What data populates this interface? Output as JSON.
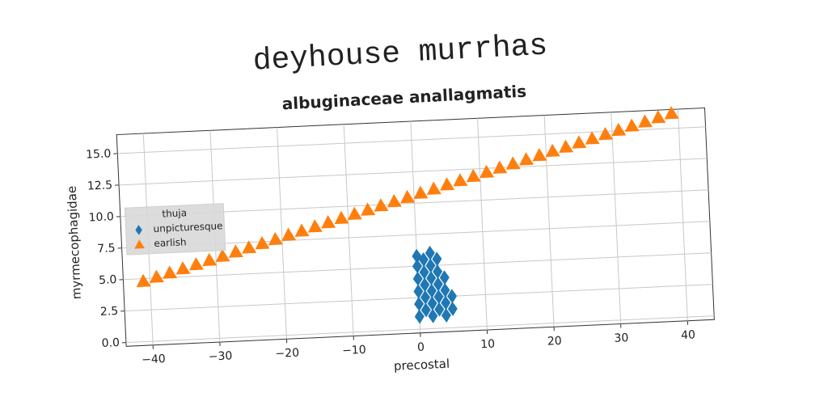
{
  "chart_data": {
    "type": "scatter",
    "title": "deyhouse murrhas",
    "subtitle": "albuginaceae anallagmatis",
    "x_label": "precostal",
    "y_label": "myrmecophagidae",
    "legend_title": "thuja",
    "legend": "center left",
    "grid": true,
    "xlim": [
      -44,
      44
    ],
    "ylim": [
      -0.3,
      16.5
    ],
    "xticks": [
      {
        "value": -40,
        "label": "−40"
      },
      {
        "value": -30,
        "label": "−30"
      },
      {
        "value": -20,
        "label": "−20"
      },
      {
        "value": -10,
        "label": "−10"
      },
      0,
      10,
      20,
      30,
      40
    ],
    "yticks": [
      {
        "value": 0,
        "label": "0.0"
      },
      2.5,
      {
        "value": 5,
        "label": "5.0"
      },
      7.5,
      {
        "value": 10,
        "label": "10.0"
      },
      12.5,
      {
        "value": 15,
        "label": "15.0"
      }
    ],
    "series": [
      {
        "name": "unpicturesque",
        "color": "#1f77b4",
        "marker": "diamond",
        "x": [
          0,
          0,
          0,
          0,
          0,
          0,
          1,
          1,
          1,
          1,
          1,
          2,
          2,
          2,
          2,
          2,
          2,
          3,
          3,
          3,
          3,
          3,
          4,
          4,
          4,
          4,
          5,
          5
        ],
        "values": [
          1,
          2,
          3,
          4,
          5,
          5.8,
          1.5,
          2.5,
          3.5,
          4.5,
          5.5,
          1,
          2,
          3,
          4,
          5,
          6,
          1.5,
          2.5,
          3.5,
          4.5,
          5.5,
          1,
          2,
          3,
          4,
          1.5,
          2.5
        ]
      },
      {
        "name": "earlish",
        "color": "#ff7f0e",
        "marker": "triangle",
        "x": [
          -41,
          -39,
          -37,
          -35,
          -33,
          -31,
          -29,
          -27,
          -25,
          -23,
          -21,
          -19,
          -17,
          -15,
          -13,
          -11,
          -9,
          -7,
          -5,
          -3,
          -1,
          1,
          3,
          5,
          7,
          9,
          11,
          13,
          15,
          17,
          19,
          21,
          23,
          25,
          27,
          29,
          31,
          33,
          35,
          37,
          39
        ],
        "values": [
          4.8,
          5.09,
          5.37,
          5.66,
          5.94,
          6.23,
          6.51,
          6.8,
          7.08,
          7.37,
          7.65,
          7.94,
          8.22,
          8.51,
          8.79,
          9.08,
          9.36,
          9.65,
          9.93,
          10.22,
          10.5,
          10.79,
          11.07,
          11.36,
          11.64,
          11.93,
          12.21,
          12.5,
          12.78,
          13.07,
          13.35,
          13.64,
          13.92,
          14.21,
          14.49,
          14.78,
          15.06,
          15.35,
          15.63,
          15.92,
          16.2
        ]
      }
    ]
  }
}
